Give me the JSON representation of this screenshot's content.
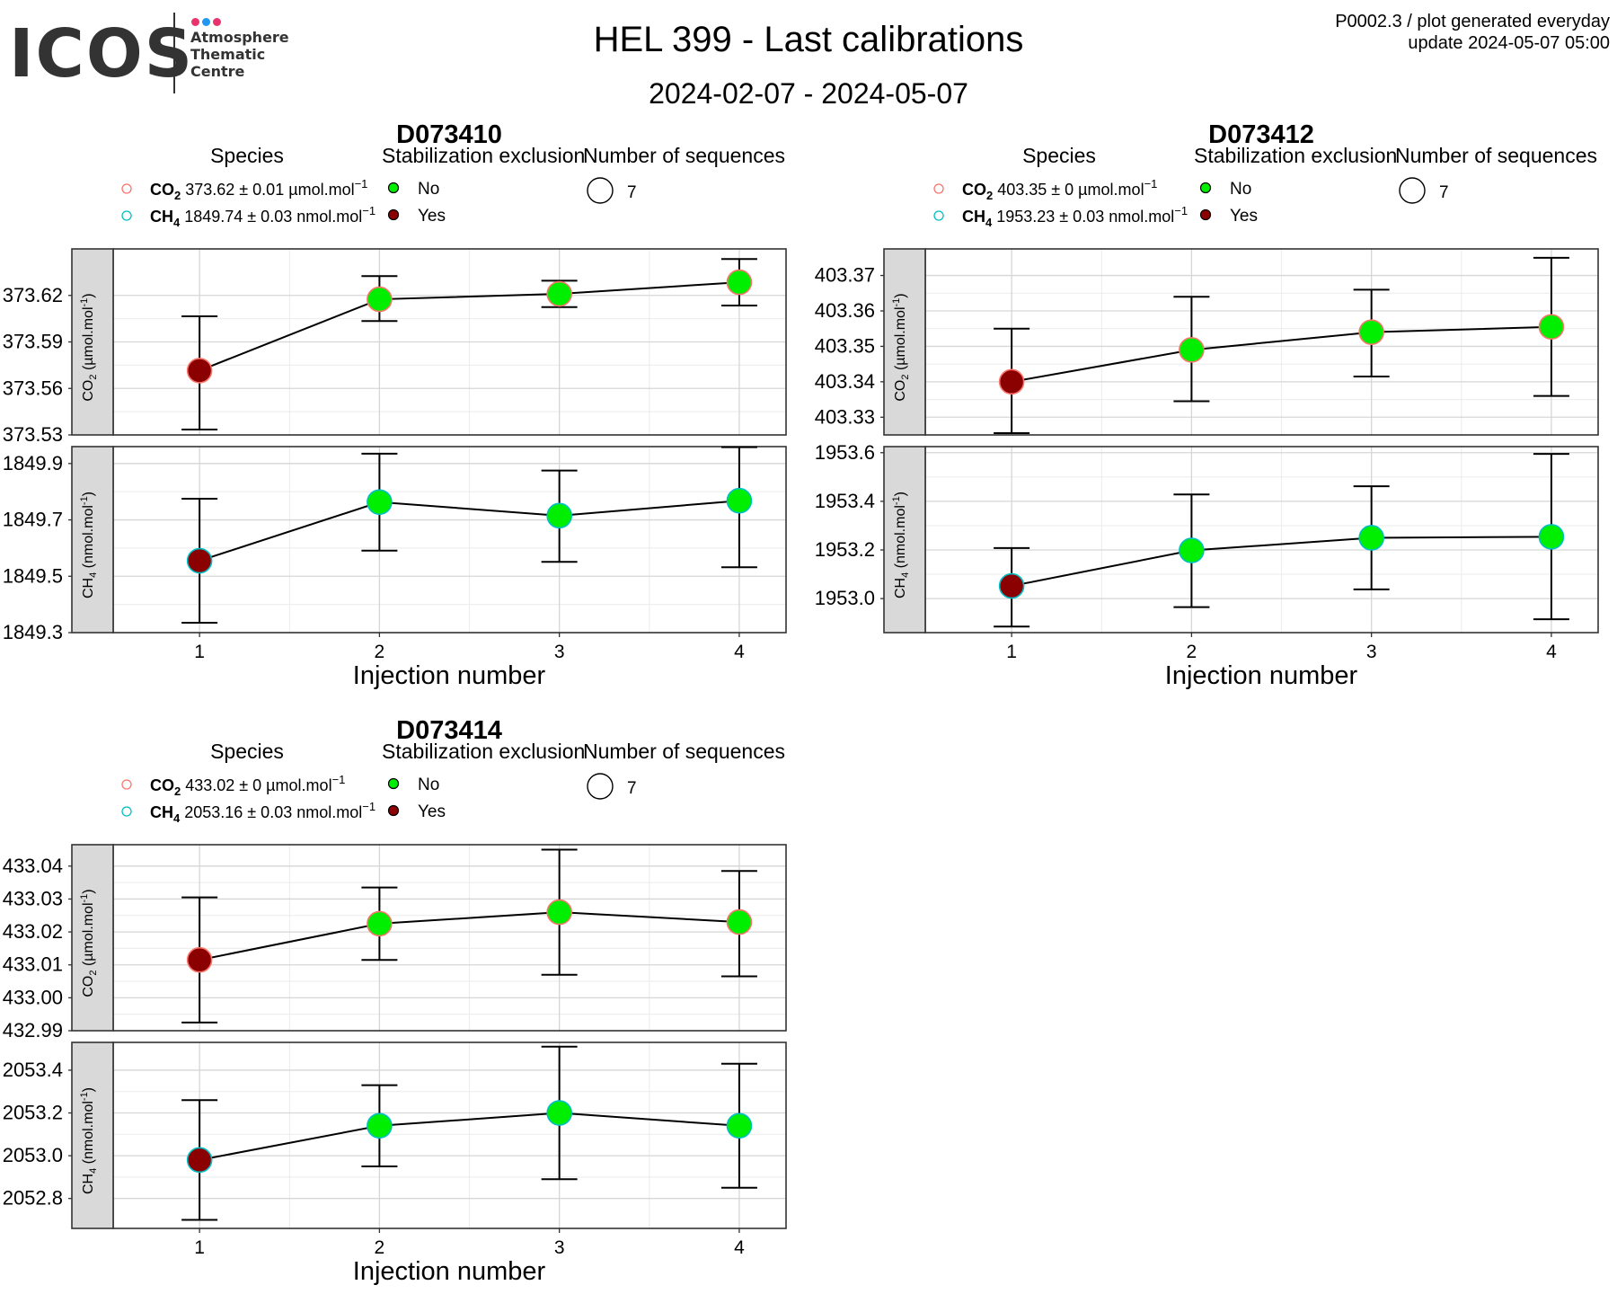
{
  "logo": {
    "text": "ICOS",
    "lines": [
      "Atmosphere",
      "Thematic",
      "Centre"
    ],
    "dot_colors": [
      "#e8336d",
      "#2196f3",
      "#e8336d"
    ]
  },
  "header": {
    "title": "HEL 399 - Last calibrations",
    "subtitle": "2024-02-07 - 2024-05-07",
    "info_line1": "P0002.3 / plot generated everyday",
    "info_line2": "update  2024-05-07 05:00"
  },
  "legend_labels": {
    "species_title": "Species",
    "stab_title": "Stabilization exclusion",
    "seq_title": "Number of sequences",
    "stab_no": "No",
    "stab_yes": "Yes",
    "co2_name": "CO",
    "co2_sub": "2",
    "ch4_name": "CH",
    "ch4_sub": "4"
  },
  "colors": {
    "not_excluded": "#00ee00",
    "excluded": "#8b0000",
    "co2_outline": "#f8766d",
    "ch4_outline": "#00bfc4",
    "strip_fill": "#d9d9d9"
  },
  "chart_data": [
    {
      "type": "line",
      "title": "D073410",
      "xlabel": "Injection number",
      "x": [
        1,
        2,
        3,
        4
      ],
      "xlim": [
        0.52,
        4.26
      ],
      "number_of_sequences": "7",
      "panels": [
        {
          "species": "CO2",
          "strip_prefix": "CO",
          "strip_sub": "2",
          "strip_unit": " (µmol.mol",
          "strip_sup": "-1",
          "strip_end": ")",
          "legend_stat": "373.62 ± 0.01 µmol.mol",
          "legend_sup": "−1",
          "ylim": [
            373.53,
            373.65
          ],
          "yticks": [
            373.53,
            373.56,
            373.59,
            373.62
          ],
          "tick_labels": [
            "373.53",
            "373.56",
            "373.59",
            "373.62"
          ],
          "values": [
            373.5715,
            373.6175,
            373.621,
            373.6285
          ],
          "err_low": [
            373.5335,
            373.6035,
            373.6125,
            373.6135
          ],
          "err_high": [
            373.6065,
            373.6325,
            373.6295,
            373.6435
          ],
          "excluded": [
            true,
            false,
            false,
            false
          ]
        },
        {
          "species": "CH4",
          "strip_prefix": "CH",
          "strip_sub": "4",
          "strip_unit": " (nmol.mol",
          "strip_sup": "-1",
          "strip_end": ")",
          "legend_stat": "1849.74 ± 0.03 nmol.mol",
          "legend_sup": "−1",
          "ylim": [
            1849.3,
            1849.96
          ],
          "yticks": [
            1849.3,
            1849.5,
            1849.7,
            1849.9
          ],
          "tick_labels": [
            "1849.3",
            "1849.5",
            "1849.7",
            "1849.9"
          ],
          "values": [
            1849.555,
            1849.763,
            1849.715,
            1849.768
          ],
          "err_low": [
            1849.335,
            1849.591,
            1849.551,
            1849.532
          ],
          "err_high": [
            1849.775,
            1849.935,
            1849.875,
            1849.958
          ],
          "excluded": [
            true,
            false,
            false,
            false
          ]
        }
      ]
    },
    {
      "type": "line",
      "title": "D073412",
      "xlabel": "Injection number",
      "x": [
        1,
        2,
        3,
        4
      ],
      "xlim": [
        0.52,
        4.26
      ],
      "number_of_sequences": "7",
      "panels": [
        {
          "species": "CO2",
          "strip_prefix": "CO",
          "strip_sub": "2",
          "strip_unit": " (µmol.mol",
          "strip_sup": "-1",
          "strip_end": ")",
          "legend_stat": "403.35 ± 0 µmol.mol",
          "legend_sup": "−1",
          "ylim": [
            403.325,
            403.3775
          ],
          "yticks": [
            403.33,
            403.34,
            403.35,
            403.36,
            403.37
          ],
          "tick_labels": [
            "403.33",
            "403.34",
            "403.35",
            "403.36",
            "403.37"
          ],
          "values": [
            403.34,
            403.349,
            403.354,
            403.3555
          ],
          "err_low": [
            403.3255,
            403.3345,
            403.3415,
            403.336
          ],
          "err_high": [
            403.355,
            403.364,
            403.366,
            403.375
          ],
          "excluded": [
            true,
            false,
            false,
            false
          ]
        },
        {
          "species": "CH4",
          "strip_prefix": "CH",
          "strip_sub": "4",
          "strip_unit": " (nmol.mol",
          "strip_sup": "-1",
          "strip_end": ")",
          "legend_stat": "1953.23 ± 0.03 nmol.mol",
          "legend_sup": "−1",
          "ylim": [
            1952.86,
            1953.625
          ],
          "yticks": [
            1953.0,
            1953.2,
            1953.4,
            1953.6
          ],
          "tick_labels": [
            "1953.0",
            "1953.2",
            "1953.4",
            "1953.6"
          ],
          "values": [
            1953.052,
            1953.198,
            1953.25,
            1953.254
          ],
          "err_low": [
            1952.885,
            1952.965,
            1953.038,
            1952.915
          ],
          "err_high": [
            1953.208,
            1953.428,
            1953.462,
            1953.595
          ],
          "excluded": [
            true,
            false,
            false,
            false
          ]
        }
      ]
    },
    {
      "type": "line",
      "title": "D073414",
      "xlabel": "Injection number",
      "x": [
        1,
        2,
        3,
        4
      ],
      "xlim": [
        0.52,
        4.26
      ],
      "number_of_sequences": "7",
      "panels": [
        {
          "species": "CO2",
          "strip_prefix": "CO",
          "strip_sub": "2",
          "strip_unit": " (µmol.mol",
          "strip_sup": "-1",
          "strip_end": ")",
          "legend_stat": "433.02 ± 0 µmol.mol",
          "legend_sup": "−1",
          "ylim": [
            432.99,
            433.0465
          ],
          "yticks": [
            432.99,
            433.0,
            433.01,
            433.02,
            433.03,
            433.04
          ],
          "tick_labels": [
            "432.99",
            "433.00",
            "433.01",
            "433.02",
            "433.03",
            "433.04"
          ],
          "values": [
            433.0115,
            433.0225,
            433.026,
            433.023
          ],
          "err_low": [
            432.9925,
            433.0115,
            433.007,
            433.0065
          ],
          "err_high": [
            433.0305,
            433.0335,
            433.045,
            433.0385
          ],
          "excluded": [
            true,
            false,
            false,
            false
          ]
        },
        {
          "species": "CH4",
          "strip_prefix": "CH",
          "strip_sub": "4",
          "strip_unit": " (nmol.mol",
          "strip_sup": "-1",
          "strip_end": ")",
          "legend_stat": "2053.16 ± 0.03 nmol.mol",
          "legend_sup": "−1",
          "ylim": [
            2052.66,
            2053.53
          ],
          "yticks": [
            2052.8,
            2053.0,
            2053.2,
            2053.4
          ],
          "tick_labels": [
            "2052.8",
            "2053.0",
            "2053.2",
            "2053.4"
          ],
          "values": [
            2052.98,
            2053.14,
            2053.2,
            2053.14
          ],
          "err_low": [
            2052.7,
            2052.95,
            2052.89,
            2052.85
          ],
          "err_high": [
            2053.26,
            2053.33,
            2053.51,
            2053.43
          ],
          "excluded": [
            true,
            false,
            false,
            false
          ]
        }
      ]
    }
  ]
}
